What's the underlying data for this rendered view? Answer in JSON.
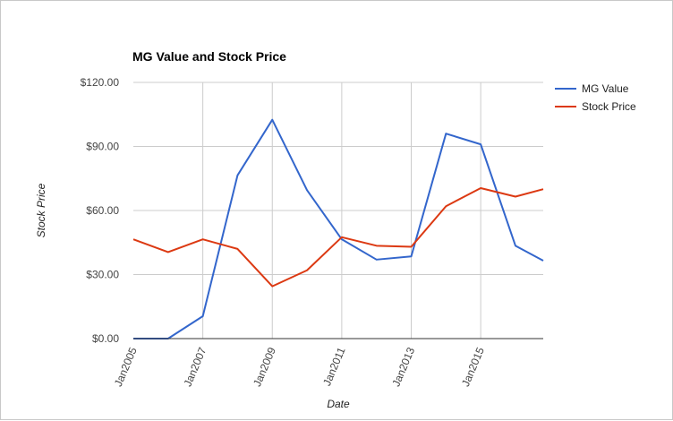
{
  "chart_data": {
    "type": "line",
    "title": "MG Value and Stock Price",
    "xlabel": "Date",
    "ylabel": "Stock Price",
    "x": [
      2005,
      2006,
      2007,
      2008,
      2009,
      2010,
      2011,
      2012,
      2013,
      2014,
      2015,
      2016,
      2016.8
    ],
    "x_ticks": [
      {
        "value": 2005,
        "label": "Jan2005"
      },
      {
        "value": 2007,
        "label": "Jan2007"
      },
      {
        "value": 2009,
        "label": "Jan2009"
      },
      {
        "value": 2011,
        "label": "Jan2011"
      },
      {
        "value": 2013,
        "label": "Jan2013"
      },
      {
        "value": 2015,
        "label": "Jan2015"
      }
    ],
    "xlim": [
      2005,
      2016.8
    ],
    "y_ticks": [
      {
        "value": 0,
        "label": "$0.00"
      },
      {
        "value": 30,
        "label": "$30.00"
      },
      {
        "value": 60,
        "label": "$60.00"
      },
      {
        "value": 90,
        "label": "$90.00"
      },
      {
        "value": 120,
        "label": "$120.00"
      }
    ],
    "ylim": [
      0,
      120
    ],
    "grid": true,
    "legend_position": "right",
    "series": [
      {
        "name": "MG Value",
        "color": "#3366cc",
        "values": [
          0,
          0,
          10.5,
          76.5,
          102.5,
          69.5,
          46.5,
          37,
          38.5,
          96,
          91,
          43.5,
          36.5
        ]
      },
      {
        "name": "Stock Price",
        "color": "#dc3912",
        "values": [
          46.5,
          40.5,
          46.5,
          42,
          24.5,
          32,
          47.5,
          43.5,
          43,
          62,
          70.5,
          66.5,
          70
        ]
      }
    ]
  }
}
